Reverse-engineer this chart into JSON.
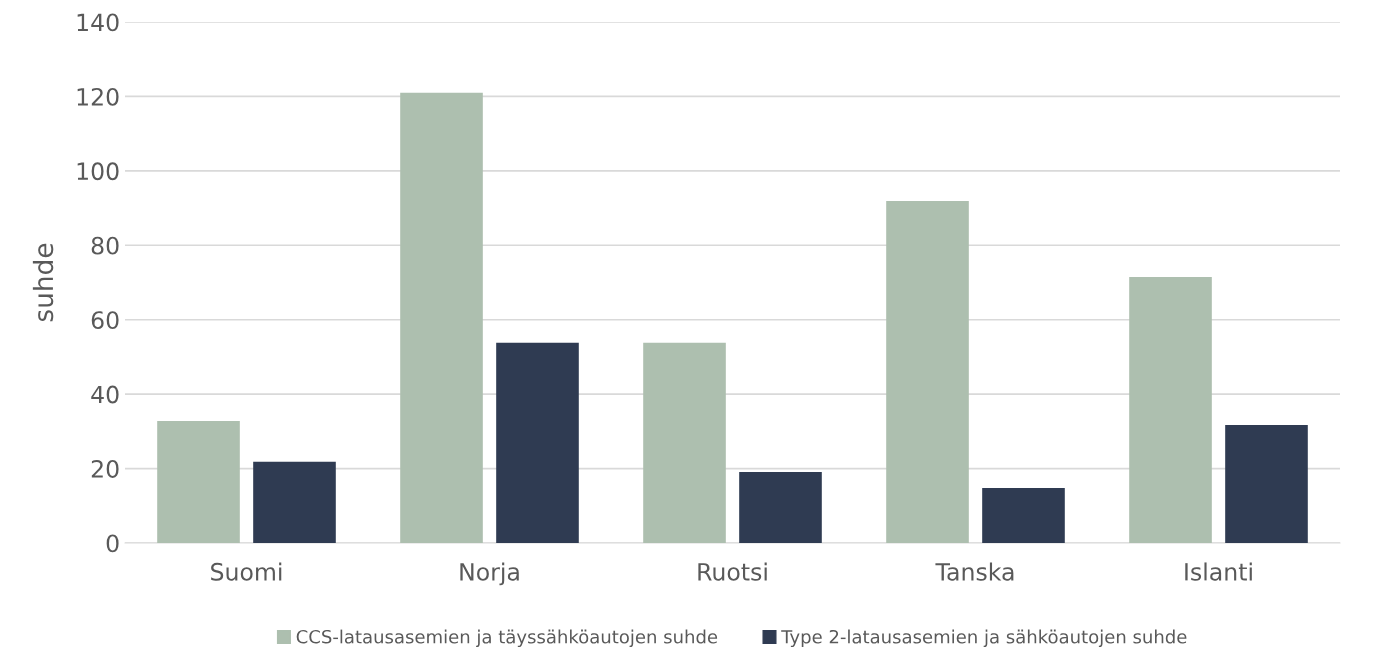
{
  "chart_data": {
    "type": "bar",
    "ylabel": "suhde",
    "categories": [
      "Suomi",
      "Norja",
      "Ruotsi",
      "Tanska",
      "Islanti"
    ],
    "series": [
      {
        "name": "CCS-latausasemien ja täyssähköautojen suhde",
        "color": "#adbfaf",
        "values": [
          32.8,
          121,
          53.8,
          91.9,
          71.5
        ]
      },
      {
        "name": "Type 2-latausasemien ja sähköautojen suhde",
        "color": "#2f3b52",
        "values": [
          21.8,
          53.8,
          19.1,
          14.8,
          31.7
        ]
      }
    ],
    "ylim": [
      0,
      140
    ],
    "yticks": [
      0,
      20,
      40,
      60,
      80,
      100,
      120,
      140
    ],
    "grid": "y",
    "legend": "bottom"
  }
}
